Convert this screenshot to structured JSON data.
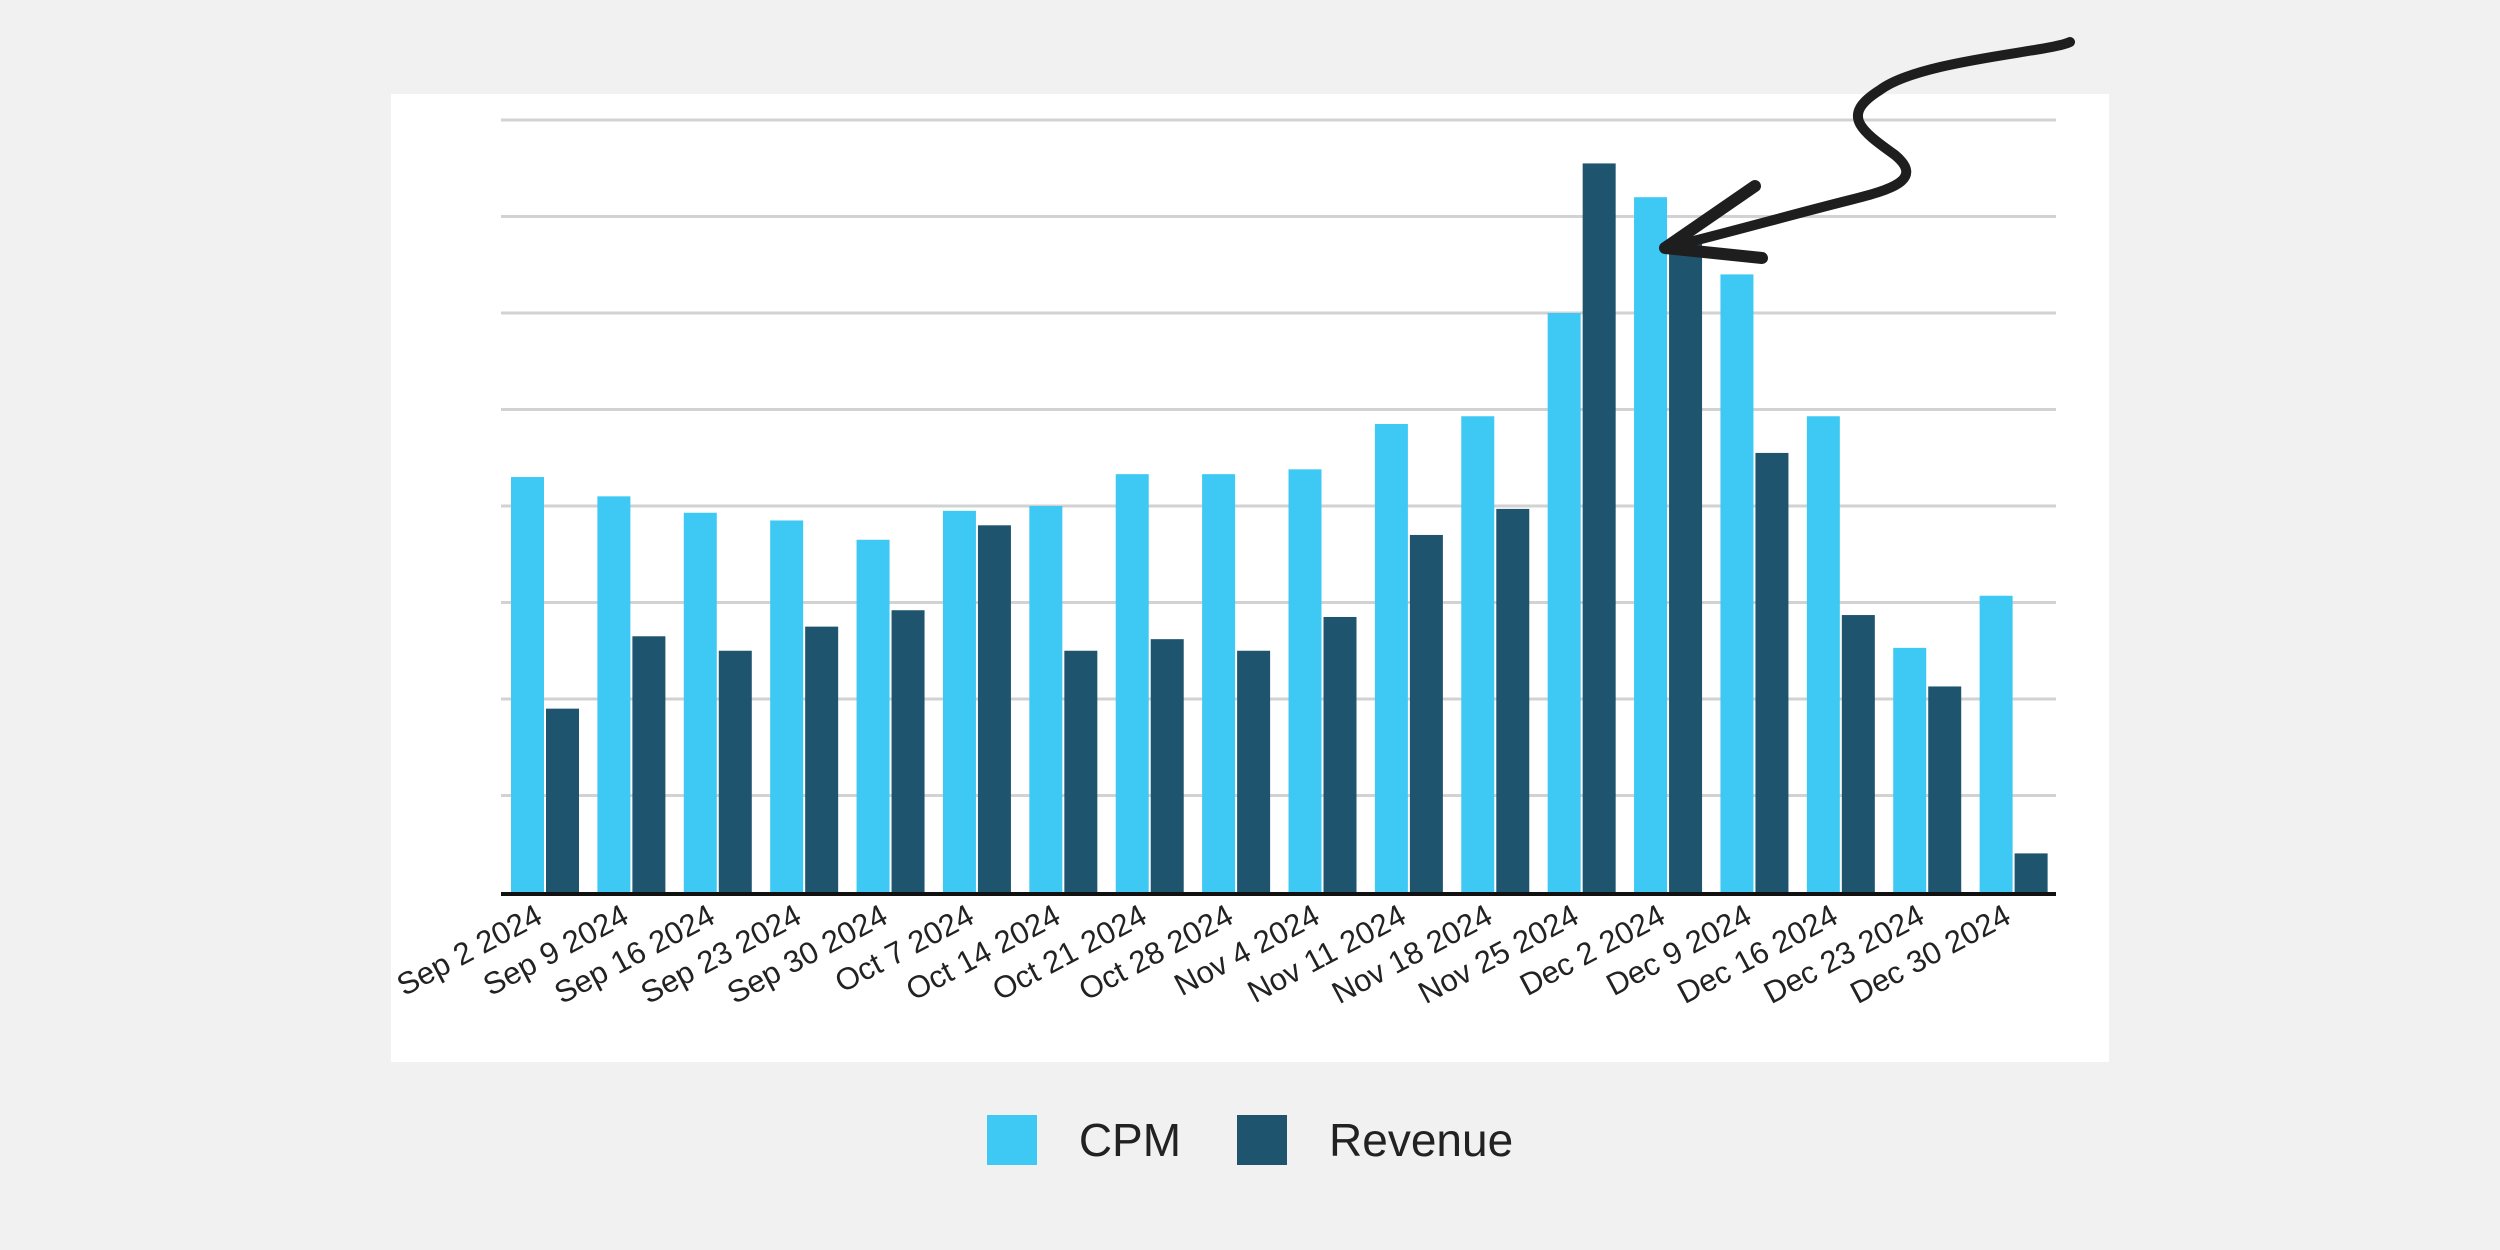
{
  "colors": {
    "background": "#f1f1f1",
    "panel": "#ffffff",
    "cpm": "#3ec8f4",
    "revenue": "#1f546f",
    "gridline": "#d2d2d2",
    "axis": "#111111",
    "annotation_arrow": "#1e1e1e"
  },
  "chart_data": {
    "type": "bar",
    "title": "",
    "xlabel": "",
    "ylabel": "",
    "y_axis_labels_shown": false,
    "ylim": [
      0,
      8
    ],
    "grid": true,
    "legend_position": "bottom-center",
    "categories": [
      "Sep 2 2024",
      "Sep 9 2024",
      "Sep 16 2024",
      "Sep 23 2024",
      "Sep 30 2024",
      "Oct 7 2024",
      "Oct 14 2024",
      "Oct 21 2024",
      "Oct 28 2024",
      "Nov 4 2024",
      "Nov 11 2024",
      "Nov 18 2024",
      "Nov 25 2024",
      "Dec 2 2024",
      "Dec 9 2024",
      "Dec 16 2024",
      "Dec 23 2024",
      "Dec 30 2024"
    ],
    "series": [
      {
        "name": "CPM",
        "color_key": "cpm",
        "values": [
          4.3,
          4.1,
          3.93,
          3.85,
          3.65,
          3.95,
          4.0,
          4.33,
          4.33,
          4.38,
          4.85,
          4.93,
          6.0,
          7.2,
          6.4,
          4.93,
          2.53,
          3.07
        ]
      },
      {
        "name": "Revenue",
        "color_key": "revenue",
        "values": [
          1.9,
          2.65,
          2.5,
          2.75,
          2.92,
          3.8,
          2.5,
          2.62,
          2.5,
          2.85,
          3.7,
          3.97,
          7.55,
          6.75,
          4.55,
          2.87,
          2.13,
          0.4
        ]
      }
    ],
    "annotations": [
      {
        "type": "hand-drawn-arrow",
        "points_to": "Dec 2 2024"
      }
    ]
  },
  "legend": {
    "items": [
      {
        "label": "CPM",
        "color_key": "cpm"
      },
      {
        "label": "Revenue",
        "color_key": "revenue"
      }
    ]
  }
}
